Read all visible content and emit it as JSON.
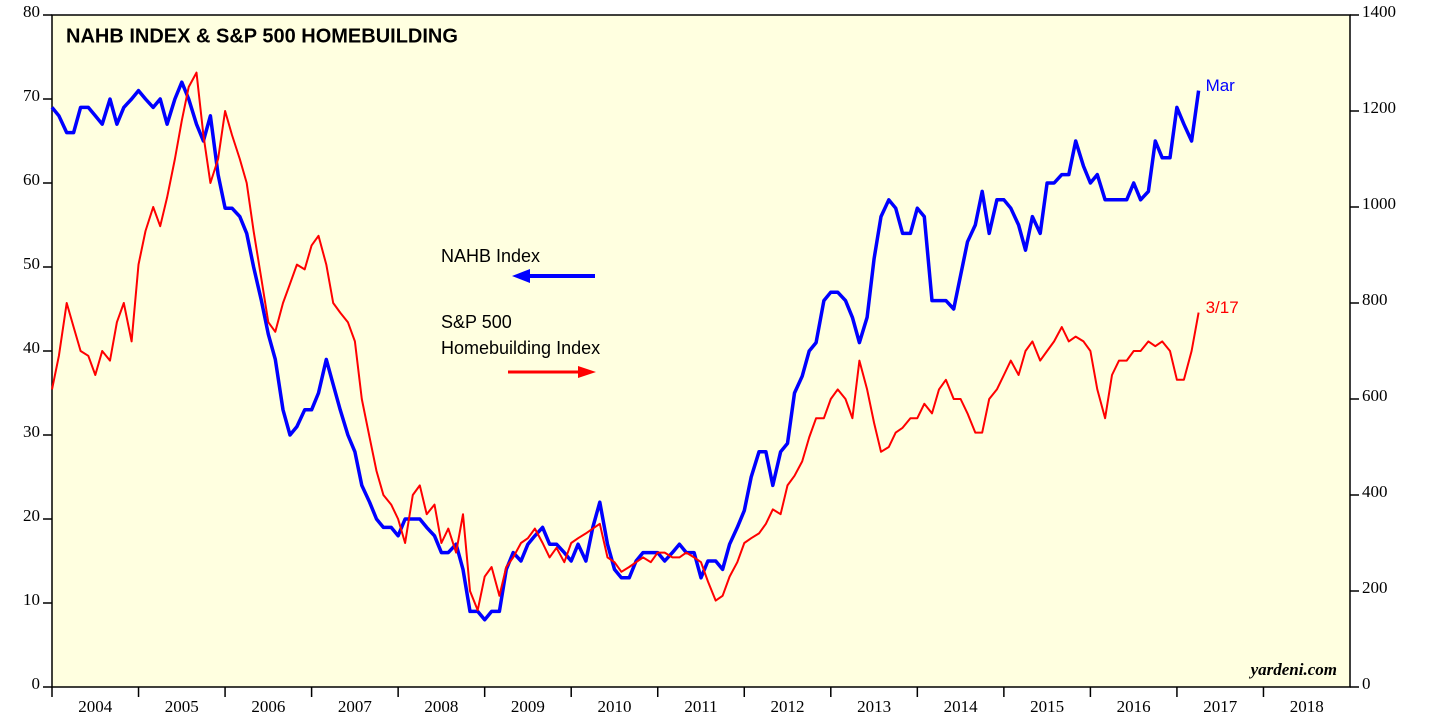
{
  "chart_data": {
    "type": "line",
    "title": "NAHB INDEX & S&P 500 HOMEBUILDING",
    "source": "yardeni.com",
    "xlim": [
      2004,
      2019
    ],
    "xticks": [
      2004,
      2005,
      2006,
      2007,
      2008,
      2009,
      2010,
      2011,
      2012,
      2013,
      2014,
      2015,
      2016,
      2017,
      2018
    ],
    "ylim": [
      0,
      80
    ],
    "yticks": [
      0,
      10,
      20,
      30,
      40,
      50,
      60,
      70,
      80
    ],
    "y2lim": [
      0,
      1400
    ],
    "y2ticks": [
      0,
      200,
      400,
      600,
      800,
      1000,
      1200,
      1400
    ],
    "x": [
      2004,
      2004.08,
      2004.17,
      2004.25,
      2004.33,
      2004.42,
      2004.5,
      2004.58,
      2004.67,
      2004.75,
      2004.83,
      2004.92,
      2005,
      2005.08,
      2005.17,
      2005.25,
      2005.33,
      2005.42,
      2005.5,
      2005.58,
      2005.67,
      2005.75,
      2005.83,
      2005.92,
      2006,
      2006.08,
      2006.17,
      2006.25,
      2006.33,
      2006.42,
      2006.5,
      2006.58,
      2006.67,
      2006.75,
      2006.83,
      2006.92,
      2007,
      2007.08,
      2007.17,
      2007.25,
      2007.33,
      2007.42,
      2007.5,
      2007.58,
      2007.67,
      2007.75,
      2007.83,
      2007.92,
      2008,
      2008.08,
      2008.17,
      2008.25,
      2008.33,
      2008.42,
      2008.5,
      2008.58,
      2008.67,
      2008.75,
      2008.83,
      2008.92,
      2009,
      2009.08,
      2009.17,
      2009.25,
      2009.33,
      2009.42,
      2009.5,
      2009.58,
      2009.67,
      2009.75,
      2009.83,
      2009.92,
      2010,
      2010.08,
      2010.17,
      2010.25,
      2010.33,
      2010.42,
      2010.5,
      2010.58,
      2010.67,
      2010.75,
      2010.83,
      2010.92,
      2011,
      2011.08,
      2011.17,
      2011.25,
      2011.33,
      2011.42,
      2011.5,
      2011.58,
      2011.67,
      2011.75,
      2011.83,
      2011.92,
      2012,
      2012.08,
      2012.17,
      2012.25,
      2012.33,
      2012.42,
      2012.5,
      2012.58,
      2012.67,
      2012.75,
      2012.83,
      2012.92,
      2013,
      2013.08,
      2013.17,
      2013.25,
      2013.33,
      2013.42,
      2013.5,
      2013.58,
      2013.67,
      2013.75,
      2013.83,
      2013.92,
      2014,
      2014.08,
      2014.17,
      2014.25,
      2014.33,
      2014.42,
      2014.5,
      2014.58,
      2014.67,
      2014.75,
      2014.83,
      2014.92,
      2015,
      2015.08,
      2015.17,
      2015.25,
      2015.33,
      2015.42,
      2015.5,
      2015.58,
      2015.67,
      2015.75,
      2015.83,
      2015.92,
      2016,
      2016.08,
      2016.17,
      2016.25,
      2016.33,
      2016.42,
      2016.5,
      2016.58,
      2016.67,
      2016.75,
      2016.83,
      2016.92,
      2017,
      2017.08,
      2017.17,
      2017.25
    ],
    "series": [
      {
        "name": "NAHB Index",
        "end_label": "Mar",
        "color": "#0000ff",
        "axis": "y",
        "values": [
          69,
          68,
          66,
          66,
          69,
          69,
          68,
          67,
          70,
          67,
          69,
          70,
          71,
          70,
          69,
          70,
          67,
          70,
          72,
          70,
          67,
          65,
          68,
          61,
          57,
          57,
          56,
          54,
          50,
          46,
          42,
          39,
          33,
          30,
          31,
          33,
          33,
          35,
          39,
          36,
          33,
          30,
          28,
          24,
          22,
          20,
          19,
          19,
          18,
          20,
          20,
          20,
          19,
          18,
          16,
          16,
          17,
          14,
          9,
          9,
          8,
          9,
          9,
          14,
          16,
          15,
          17,
          18,
          19,
          17,
          17,
          16,
          15,
          17,
          15,
          19,
          22,
          17,
          14,
          13,
          13,
          15,
          16,
          16,
          16,
          15,
          16,
          17,
          16,
          16,
          13,
          15,
          15,
          14,
          17,
          19,
          21,
          25,
          28,
          28,
          24,
          28,
          29,
          35,
          37,
          40,
          41,
          46,
          47,
          47,
          46,
          44,
          41,
          44,
          51,
          56,
          58,
          57,
          54,
          54,
          57,
          56,
          46,
          46,
          46,
          45,
          49,
          53,
          55,
          59,
          54,
          58,
          58,
          57,
          55,
          52,
          56,
          54,
          60,
          60,
          61,
          61,
          65,
          62,
          60,
          61,
          58,
          58,
          58,
          58,
          60,
          58,
          59,
          65,
          63,
          63,
          69,
          67,
          65,
          71
        ]
      },
      {
        "name": "S&P 500 Homebuilding Index",
        "end_label": "3/17",
        "color": "#ff0000",
        "axis": "y2",
        "values": [
          620,
          690,
          800,
          750,
          700,
          690,
          650,
          700,
          680,
          760,
          800,
          720,
          880,
          950,
          1000,
          960,
          1020,
          1100,
          1180,
          1250,
          1280,
          1150,
          1050,
          1100,
          1200,
          1150,
          1100,
          1050,
          950,
          850,
          760,
          740,
          800,
          840,
          880,
          870,
          920,
          940,
          880,
          800,
          780,
          760,
          720,
          600,
          520,
          450,
          400,
          380,
          350,
          300,
          400,
          420,
          360,
          380,
          300,
          330,
          280,
          360,
          200,
          160,
          230,
          250,
          190,
          250,
          270,
          300,
          310,
          330,
          300,
          270,
          290,
          260,
          300,
          310,
          320,
          330,
          340,
          270,
          260,
          240,
          250,
          260,
          270,
          260,
          280,
          280,
          270,
          270,
          280,
          270,
          260,
          220,
          180,
          190,
          230,
          260,
          300,
          310,
          320,
          340,
          370,
          360,
          420,
          440,
          470,
          520,
          560,
          560,
          600,
          620,
          600,
          560,
          680,
          620,
          550,
          490,
          500,
          530,
          540,
          560,
          560,
          590,
          570,
          620,
          640,
          600,
          600,
          570,
          530,
          530,
          600,
          620,
          650,
          680,
          650,
          700,
          720,
          680,
          700,
          720,
          750,
          720,
          730,
          720,
          700,
          620,
          560,
          650,
          680,
          680,
          700,
          700,
          720,
          710,
          720,
          700,
          640,
          640,
          700,
          780
        ]
      }
    ]
  }
}
